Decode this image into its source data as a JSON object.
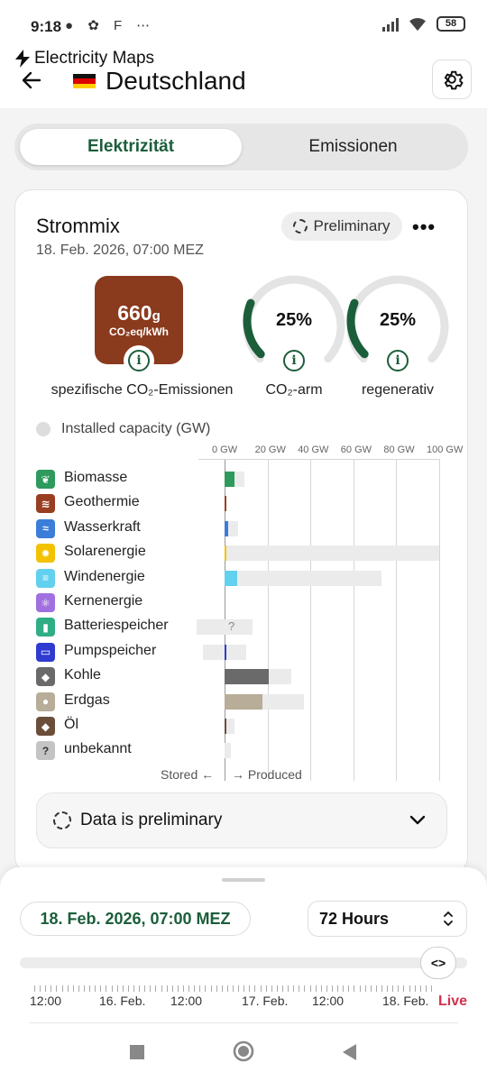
{
  "status_bar": {
    "time": "9:18",
    "battery": "58"
  },
  "header": {
    "brand": "Electricity Maps",
    "country": "Deutschland"
  },
  "tabs": {
    "active": "Elektrizität",
    "inactive": "Emissionen"
  },
  "card": {
    "title": "Strommix",
    "date": "18. Feb. 2026, 07:00 MEZ",
    "chip": "Preliminary",
    "co2": {
      "value": "660",
      "unit_g": "g",
      "unit": "CO₂eq/kWh",
      "label": "spezifische CO₂-Emissionen"
    },
    "gauges": [
      {
        "value": "25%",
        "fraction": 0.25,
        "label": "CO₂-arm"
      },
      {
        "value": "25%",
        "fraction": 0.25,
        "label": "regenerativ"
      }
    ],
    "capacity_label": "Installed capacity (GW)",
    "axis_ticks": [
      "0 GW",
      "20 GW",
      "40 GW",
      "60 GW",
      "80 GW",
      "100 GW"
    ],
    "legend_stored": "Stored ←",
    "legend_produced": "→ Produced",
    "prelim_notice": "Data is preliminary"
  },
  "chart_data": {
    "type": "bar",
    "xlim": [
      0,
      100
    ],
    "unknown_marker": "?",
    "categories": [
      "Biomasse",
      "Geothermie",
      "Wasserkraft",
      "Solarenergie",
      "Windenergie",
      "Kernenergie",
      "Batteriespeicher",
      "Pumpspeicher",
      "Kohle",
      "Erdgas",
      "Öl",
      "unbekannt"
    ],
    "colors": [
      "#2e9a5c",
      "#9a3e22",
      "#3b7dd8",
      "#f2c200",
      "#62d0ef",
      "#a070e0",
      "#2fae86",
      "#2f3ad0",
      "#6a6a6a",
      "#b7ad98",
      "#6b4e3a",
      "#9a9a9a"
    ],
    "produced_gw": [
      4.7,
      0.1,
      1.8,
      0.1,
      5.8,
      0,
      0,
      0.6,
      20.4,
      17.5,
      0.6,
      0
    ],
    "capacity_gw": [
      9.2,
      0.1,
      6.3,
      100,
      73,
      0,
      13,
      10,
      31,
      37,
      4.5,
      3
    ],
    "stored_capacity_gw": [
      0,
      0,
      0,
      0,
      0,
      0,
      13,
      10,
      0,
      0,
      0,
      0
    ]
  },
  "timeline": {
    "date": "18. Feb. 2026, 07:00 MEZ",
    "range": "72 Hours",
    "knob": "<>",
    "labels": [
      "12:00",
      "16. Feb.",
      "12:00",
      "17. Feb.",
      "12:00",
      "18. Feb."
    ],
    "live": "Live"
  }
}
